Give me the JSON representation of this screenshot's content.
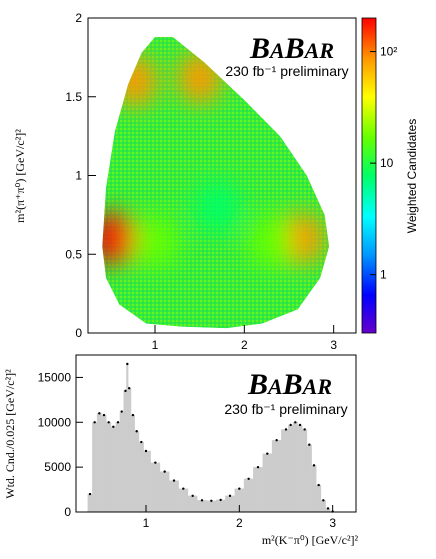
{
  "chart_data": [
    {
      "type": "heatmap",
      "ylabel": "m²(π⁺π⁰) [GeV/c²]²",
      "xlim": [
        0.25,
        3.25
      ],
      "ylim": [
        0,
        2
      ],
      "xticks": [
        "1",
        "2",
        "3"
      ],
      "yticks": [
        "0",
        "0.5",
        "1",
        "1.5",
        "2"
      ],
      "brand": "BaBar",
      "brand_parts": [
        "B",
        "A",
        "B",
        "AR"
      ],
      "lumi": "230 fb⁻¹ preliminary",
      "colorbar": {
        "label": "Weighted Candidates",
        "scale": "log",
        "range": [
          0.3,
          200
        ],
        "ticks": [
          "1",
          "10",
          "10²"
        ]
      },
      "colors": [
        "#6600cc",
        "#0000ff",
        "#0099ff",
        "#00ffff",
        "#00ff66",
        "#66ff00",
        "#ffff00",
        "#ff9900",
        "#ff0000"
      ],
      "boundary": [
        [
          0.41,
          0.55
        ],
        [
          0.45,
          0.92
        ],
        [
          0.55,
          1.28
        ],
        [
          0.7,
          1.58
        ],
        [
          0.85,
          1.78
        ],
        [
          1.0,
          1.88
        ],
        [
          1.2,
          1.88
        ],
        [
          1.55,
          1.72
        ],
        [
          2.0,
          1.48
        ],
        [
          2.4,
          1.25
        ],
        [
          2.7,
          1.0
        ],
        [
          2.9,
          0.75
        ],
        [
          2.95,
          0.55
        ],
        [
          2.85,
          0.35
        ],
        [
          2.6,
          0.15
        ],
        [
          2.2,
          0.06
        ],
        [
          1.8,
          0.03
        ],
        [
          1.3,
          0.04
        ],
        [
          0.9,
          0.06
        ],
        [
          0.6,
          0.18
        ],
        [
          0.45,
          0.35
        ]
      ],
      "hotspots": [
        {
          "x": 0.55,
          "y": 0.6,
          "level": 150
        },
        {
          "x": 0.78,
          "y": 1.6,
          "level": 100
        },
        {
          "x": 2.65,
          "y": 0.6,
          "level": 120
        },
        {
          "x": 1.5,
          "y": 1.62,
          "level": 60
        },
        {
          "x": 1.0,
          "y": 0.58,
          "level": 20
        },
        {
          "x": 2.3,
          "y": 0.58,
          "level": 20
        },
        {
          "x": 1.7,
          "y": 0.8,
          "level": 8
        }
      ]
    },
    {
      "type": "bar",
      "ylabel": "Wtd. Cnd./0.025 [GeV/c²]²",
      "xlabel": "m²(K⁻π⁰) [GeV/c²]²",
      "xlim": [
        0.25,
        3.25
      ],
      "ylim": [
        0,
        17500
      ],
      "xticks": [
        "1",
        "2",
        "3"
      ],
      "yticks": [
        "0",
        "5000",
        "10000",
        "15000"
      ],
      "brand": "BaBar",
      "brand_parts": [
        "B",
        "A",
        "B",
        "AR"
      ],
      "lumi": "230 fb⁻¹ preliminary",
      "x": [
        0.4,
        0.45,
        0.5,
        0.55,
        0.6,
        0.65,
        0.7,
        0.74,
        0.78,
        0.8,
        0.82,
        0.86,
        0.9,
        0.95,
        1.0,
        1.1,
        1.2,
        1.3,
        1.4,
        1.5,
        1.6,
        1.7,
        1.8,
        1.9,
        2.0,
        2.1,
        2.2,
        2.3,
        2.4,
        2.5,
        2.55,
        2.6,
        2.65,
        2.7,
        2.75,
        2.8,
        2.85,
        2.9,
        2.95,
        3.0
      ],
      "values": [
        2000,
        10000,
        11000,
        10800,
        10000,
        9500,
        10000,
        11200,
        13500,
        16500,
        13800,
        10800,
        9000,
        7800,
        6800,
        5500,
        4500,
        3500,
        2600,
        1800,
        1300,
        1250,
        1350,
        1800,
        2600,
        3700,
        5000,
        6500,
        8000,
        9200,
        9700,
        10000,
        9700,
        9200,
        7500,
        5200,
        3000,
        1300,
        400,
        50
      ]
    }
  ]
}
